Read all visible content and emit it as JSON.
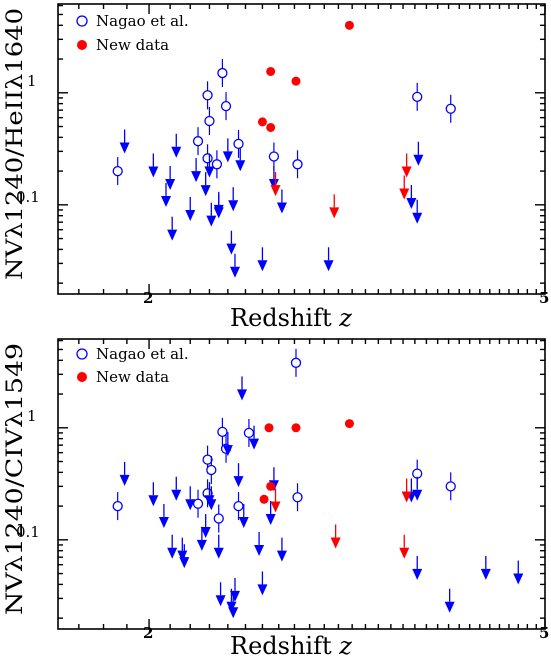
{
  "colors": {
    "nagao": "#0000ff",
    "new": "#ff0000",
    "axis": "#000000"
  },
  "chart_data": [
    {
      "type": "scatter",
      "x_scale": "log",
      "y_scale": "log",
      "xlabel_main": "Redshift ",
      "xlabel_var": "z",
      "ylabel": "NVλ1240/HeIIλ1640",
      "x_tick_labels": [
        {
          "value": 2,
          "label": "2"
        },
        {
          "value": 5,
          "label": "5"
        }
      ],
      "y_tick_labels": [
        {
          "value": 0.1,
          "label": "0.1"
        },
        {
          "value": 1,
          "label": "1"
        }
      ],
      "xlim": [
        1.62,
        5.0
      ],
      "ylim": [
        0.016,
        6.2
      ],
      "legend": [
        "Nagao et al.",
        "New data"
      ],
      "legend_position": "top-left",
      "series": [
        {
          "name": "Nagao et al.",
          "marker": "open-circle",
          "color": "#0000ff",
          "points": [
            [
              1.86,
              0.2
            ],
            [
              2.24,
              0.37
            ],
            [
              2.29,
              0.95
            ],
            [
              2.3,
              0.56
            ],
            [
              2.37,
              1.5
            ],
            [
              2.39,
              0.76
            ],
            [
              2.29,
              0.26
            ],
            [
              2.34,
              0.23
            ],
            [
              2.46,
              0.35
            ],
            [
              2.67,
              0.27
            ],
            [
              2.82,
              0.23
            ],
            [
              3.72,
              0.92
            ],
            [
              4.02,
              0.72
            ]
          ]
        },
        {
          "name": "Nagao et al. upper limits",
          "marker": "down-arrow",
          "color": "#0000ff",
          "points": [
            [
              1.89,
              0.36
            ],
            [
              2.02,
              0.22
            ],
            [
              2.08,
              0.12
            ],
            [
              2.11,
              0.06
            ],
            [
              2.1,
              0.17
            ],
            [
              2.13,
              0.33
            ],
            [
              2.2,
              0.09
            ],
            [
              2.23,
              0.2
            ],
            [
              2.28,
              0.15
            ],
            [
              2.3,
              0.22
            ],
            [
              2.31,
              0.08
            ],
            [
              2.35,
              0.095
            ],
            [
              2.35,
              0.1
            ],
            [
              2.4,
              0.3
            ],
            [
              2.42,
              0.045
            ],
            [
              2.43,
              0.11
            ],
            [
              2.44,
              0.028
            ],
            [
              2.47,
              0.25
            ],
            [
              2.6,
              0.032
            ],
            [
              2.67,
              0.17
            ],
            [
              2.72,
              0.105
            ],
            [
              3.03,
              0.032
            ],
            [
              3.67,
              0.115
            ],
            [
              3.72,
              0.085
            ],
            [
              3.73,
              0.28
            ]
          ]
        },
        {
          "name": "New data",
          "marker": "filled-circle",
          "color": "#ff0000",
          "points": [
            [
              3.18,
              4.0
            ],
            [
              2.65,
              1.55
            ],
            [
              2.81,
              1.27
            ],
            [
              2.6,
              0.55
            ],
            [
              2.65,
              0.49
            ]
          ]
        },
        {
          "name": "New data upper limits",
          "marker": "down-arrow",
          "color": "#ff0000",
          "points": [
            [
              2.68,
              0.15
            ],
            [
              3.07,
              0.095
            ],
            [
              3.61,
              0.14
            ],
            [
              3.63,
              0.22
            ]
          ]
        }
      ]
    },
    {
      "type": "scatter",
      "x_scale": "log",
      "y_scale": "log",
      "xlabel_main": "Redshift ",
      "xlabel_var": "z",
      "ylabel": "NVλ1240/CIVλ1549",
      "x_tick_labels": [
        {
          "value": 2,
          "label": "2"
        },
        {
          "value": 5,
          "label": "5"
        }
      ],
      "y_tick_labels": [
        {
          "value": 0.1,
          "label": "0.1"
        },
        {
          "value": 1,
          "label": "1"
        }
      ],
      "xlim": [
        1.62,
        5.0
      ],
      "ylim": [
        0.016,
        6.2
      ],
      "legend": [
        "Nagao et al.",
        "New data"
      ],
      "legend_position": "top-left",
      "series": [
        {
          "name": "Nagao et al.",
          "marker": "open-circle",
          "color": "#0000ff",
          "points": [
            [
              1.86,
              0.2
            ],
            [
              2.24,
              0.21
            ],
            [
              2.29,
              0.52
            ],
            [
              2.31,
              0.42
            ],
            [
              2.29,
              0.26
            ],
            [
              2.35,
              0.155
            ],
            [
              2.37,
              0.92
            ],
            [
              2.39,
              0.65
            ],
            [
              2.46,
              0.2
            ],
            [
              2.52,
              0.9
            ],
            [
              2.81,
              3.8
            ],
            [
              2.82,
              0.24
            ],
            [
              3.72,
              0.39
            ],
            [
              4.02,
              0.3
            ]
          ]
        },
        {
          "name": "Nagao et al. upper limits",
          "marker": "down-arrow",
          "color": "#0000ff",
          "points": [
            [
              1.89,
              0.38
            ],
            [
              2.02,
              0.25
            ],
            [
              2.07,
              0.16
            ],
            [
              2.11,
              0.085
            ],
            [
              2.13,
              0.28
            ],
            [
              2.16,
              0.08
            ],
            [
              2.17,
              0.07
            ],
            [
              2.2,
              0.23
            ],
            [
              2.26,
              0.1
            ],
            [
              2.28,
              0.13
            ],
            [
              2.3,
              0.25
            ],
            [
              2.31,
              0.23
            ],
            [
              2.35,
              0.085
            ],
            [
              2.36,
              0.032
            ],
            [
              2.4,
              0.7
            ],
            [
              2.42,
              0.028
            ],
            [
              2.43,
              0.025
            ],
            [
              2.44,
              0.035
            ],
            [
              2.46,
              0.37
            ],
            [
              2.48,
              2.2
            ],
            [
              2.49,
              0.16
            ],
            [
              2.55,
              0.8
            ],
            [
              2.58,
              0.09
            ],
            [
              2.6,
              0.04
            ],
            [
              2.65,
              0.17
            ],
            [
              2.67,
              0.34
            ],
            [
              2.72,
              0.08
            ],
            [
              3.67,
              0.27
            ],
            [
              3.72,
              0.055
            ],
            [
              3.72,
              0.28
            ],
            [
              4.01,
              0.028
            ],
            [
              4.36,
              0.055
            ],
            [
              4.7,
              0.05
            ]
          ]
        },
        {
          "name": "New data",
          "marker": "filled-circle",
          "color": "#ff0000",
          "points": [
            [
              2.64,
              1.0
            ],
            [
              2.81,
              1.0
            ],
            [
              3.18,
              1.09
            ],
            [
              2.61,
              0.23
            ],
            [
              2.65,
              0.3
            ]
          ]
        },
        {
          "name": "New data upper limits",
          "marker": "down-arrow",
          "color": "#ff0000",
          "points": [
            [
              2.68,
              0.22
            ],
            [
              3.08,
              0.105
            ],
            [
              3.61,
              0.085
            ],
            [
              3.63,
              0.27
            ]
          ]
        }
      ]
    }
  ]
}
